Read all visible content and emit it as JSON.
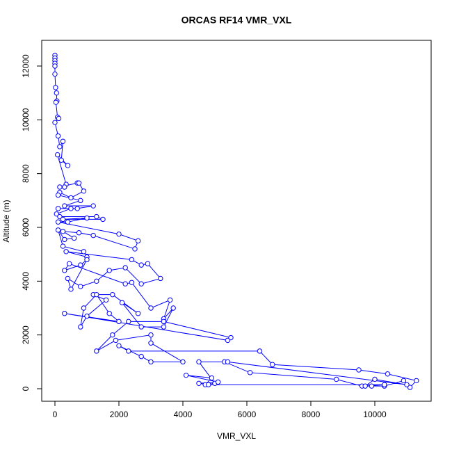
{
  "chart_data": {
    "type": "line",
    "title": "ORCAS RF14 VMR_VXL",
    "x_label": "VMR_VXL",
    "y_label": "Altitude (m)",
    "color": "#0000ff",
    "markers": true,
    "xlim": [
      -413,
      11761
    ],
    "ylim": [
      -465,
      12956
    ],
    "xticks": [
      0,
      2000,
      4000,
      6000,
      8000,
      10000
    ],
    "yticks": [
      0,
      2000,
      4000,
      6000,
      8000,
      10000,
      12000
    ],
    "x": [
      0,
      0,
      0,
      0,
      0,
      0,
      20,
      50,
      60,
      30,
      80,
      120,
      0,
      100,
      150,
      250,
      200,
      400,
      80,
      350,
      300,
      150,
      700,
      750,
      900,
      500,
      150,
      100,
      800,
      300,
      1200,
      700,
      100,
      500,
      50,
      150,
      1300,
      1500,
      250,
      1000,
      400,
      100,
      2000,
      2600,
      2500,
      1200,
      750,
      250,
      600,
      300,
      100,
      250,
      900,
      1000,
      350,
      2400,
      2700,
      2900,
      3300,
      2700,
      2200,
      1700,
      1300,
      800,
      400,
      500,
      1000,
      800,
      300,
      450,
      2200,
      2400,
      3000,
      3600,
      3400,
      3700,
      3400,
      2700,
      2100,
      2600,
      1800,
      1200,
      1600,
      1000,
      800,
      900,
      1300,
      1700,
      2000,
      300,
      5400,
      5500,
      3400,
      2300,
      1800,
      1300,
      1900,
      3000,
      3000,
      4000,
      3000,
      2700,
      2000,
      2300,
      6400,
      6800,
      9500,
      10400,
      11300,
      11100,
      10900,
      10300,
      9900,
      9600,
      8800,
      6100,
      5300,
      4500,
      5000,
      4700,
      4900,
      4100,
      5100,
      4500,
      4800,
      10300,
      9700,
      10000,
      11000,
      5400
    ],
    "values": [
      12400,
      12300,
      12200,
      12100,
      12000,
      11700,
      11200,
      11000,
      10700,
      10650,
      10100,
      10050,
      9900,
      9400,
      9000,
      9200,
      8500,
      8300,
      8700,
      7600,
      7500,
      7500,
      7650,
      7650,
      7350,
      7100,
      7300,
      7200,
      7000,
      6800,
      6800,
      6700,
      6700,
      6700,
      6500,
      6400,
      6400,
      6300,
      6300,
      6350,
      6200,
      6200,
      5750,
      5500,
      5200,
      5700,
      5800,
      5850,
      5600,
      5550,
      5900,
      5300,
      5100,
      4900,
      5100,
      4800,
      4600,
      4650,
      4100,
      3900,
      4500,
      4400,
      4000,
      3800,
      4100,
      3700,
      4800,
      4600,
      4400,
      4650,
      3900,
      3950,
      3000,
      3300,
      2600,
      3000,
      2300,
      2300,
      3200,
      2800,
      3500,
      3500,
      3300,
      2700,
      2300,
      3000,
      3500,
      2800,
      2500,
      2800,
      1800,
      1900,
      2500,
      2500,
      2000,
      1400,
      1800,
      2000,
      1700,
      1000,
      1000,
      1200,
      1600,
      1400,
      1400,
      900,
      700,
      550,
      300,
      50,
      300,
      100,
      100,
      100,
      350,
      600,
      1000,
      1000,
      200,
      150,
      400,
      500,
      250,
      200,
      150,
      150,
      100,
      350,
      150,
      1000
    ]
  }
}
